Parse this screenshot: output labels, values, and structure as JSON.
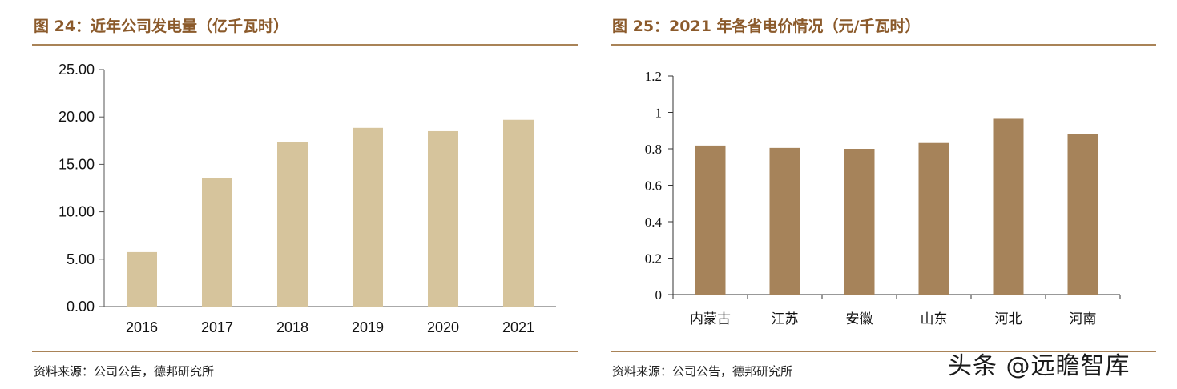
{
  "left": {
    "title": "图 24：近年公司发电量（亿千瓦时）",
    "source": "资料来源：公司公告，德邦研究所"
  },
  "right": {
    "title": "图 25：2021 年各省电价情况（元/千瓦时）",
    "source": "资料来源：公司公告，德邦研究所"
  },
  "watermark": "头条 @远瞻智库",
  "colors": {
    "accent": "#A98357",
    "bar_left": "#D6C49C",
    "bar_right": "#A6835A",
    "title": "#8B5A2B"
  },
  "chart_data": [
    {
      "type": "bar",
      "title": "图 24：近年公司发电量（亿千瓦时）",
      "categories": [
        "2016",
        "2017",
        "2018",
        "2019",
        "2020",
        "2021"
      ],
      "values": [
        5.75,
        13.55,
        17.35,
        18.85,
        18.5,
        19.7
      ],
      "ylim": [
        0,
        25
      ],
      "yticks": [
        0,
        5,
        10,
        15,
        20,
        25
      ],
      "ytick_labels": [
        "0.00",
        "5.00",
        "10.00",
        "15.00",
        "20.00",
        "25.00"
      ],
      "grid": false,
      "legend": "none"
    },
    {
      "type": "bar",
      "title": "图 25：2021 年各省电价情况（元/千瓦时）",
      "categories": [
        "内蒙古",
        "江苏",
        "安徽",
        "山东",
        "河北",
        "河南"
      ],
      "values": [
        0.818,
        0.805,
        0.8,
        0.832,
        0.965,
        0.882
      ],
      "ylim": [
        0,
        1.2
      ],
      "yticks": [
        0,
        0.2,
        0.4,
        0.6,
        0.8,
        1,
        1.2
      ],
      "ytick_labels": [
        "0",
        "0.2",
        "0.4",
        "0.6",
        "0.8",
        "1",
        "1.2"
      ],
      "grid": false,
      "legend": "none"
    }
  ]
}
